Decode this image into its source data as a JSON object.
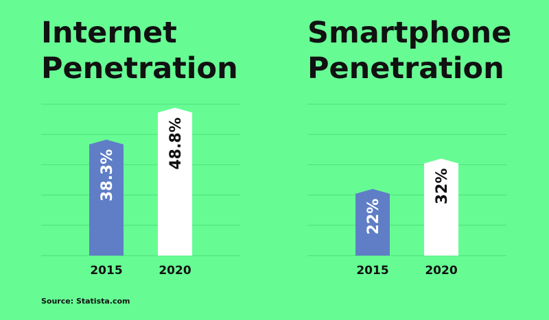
{
  "chart_data": [
    {
      "type": "bar",
      "title_lines": [
        "Internet",
        "Penetration"
      ],
      "categories": [
        "2015",
        "2020"
      ],
      "values": [
        38.3,
        48.8
      ],
      "data_labels": [
        "38.3%",
        "48.8%"
      ],
      "xlabel": "",
      "ylabel": "",
      "ylim": [
        0,
        50
      ],
      "grid": true,
      "colors": [
        "#5f7ec6",
        "#ffffff"
      ],
      "label_colors": [
        "#ffffff",
        "#111111"
      ]
    },
    {
      "type": "bar",
      "title_lines": [
        "Smartphone",
        "Penetration"
      ],
      "categories": [
        "2015",
        "2020"
      ],
      "values": [
        22,
        32
      ],
      "data_labels": [
        "22%",
        "32%"
      ],
      "xlabel": "",
      "ylabel": "",
      "ylim": [
        0,
        50
      ],
      "grid": true,
      "colors": [
        "#5f7ec6",
        "#ffffff"
      ],
      "label_colors": [
        "#ffffff",
        "#111111"
      ]
    }
  ],
  "source": "Source: Statista.com",
  "colors": {
    "background": "#67fb94",
    "grid": "#4fe07c",
    "text": "#111111"
  }
}
